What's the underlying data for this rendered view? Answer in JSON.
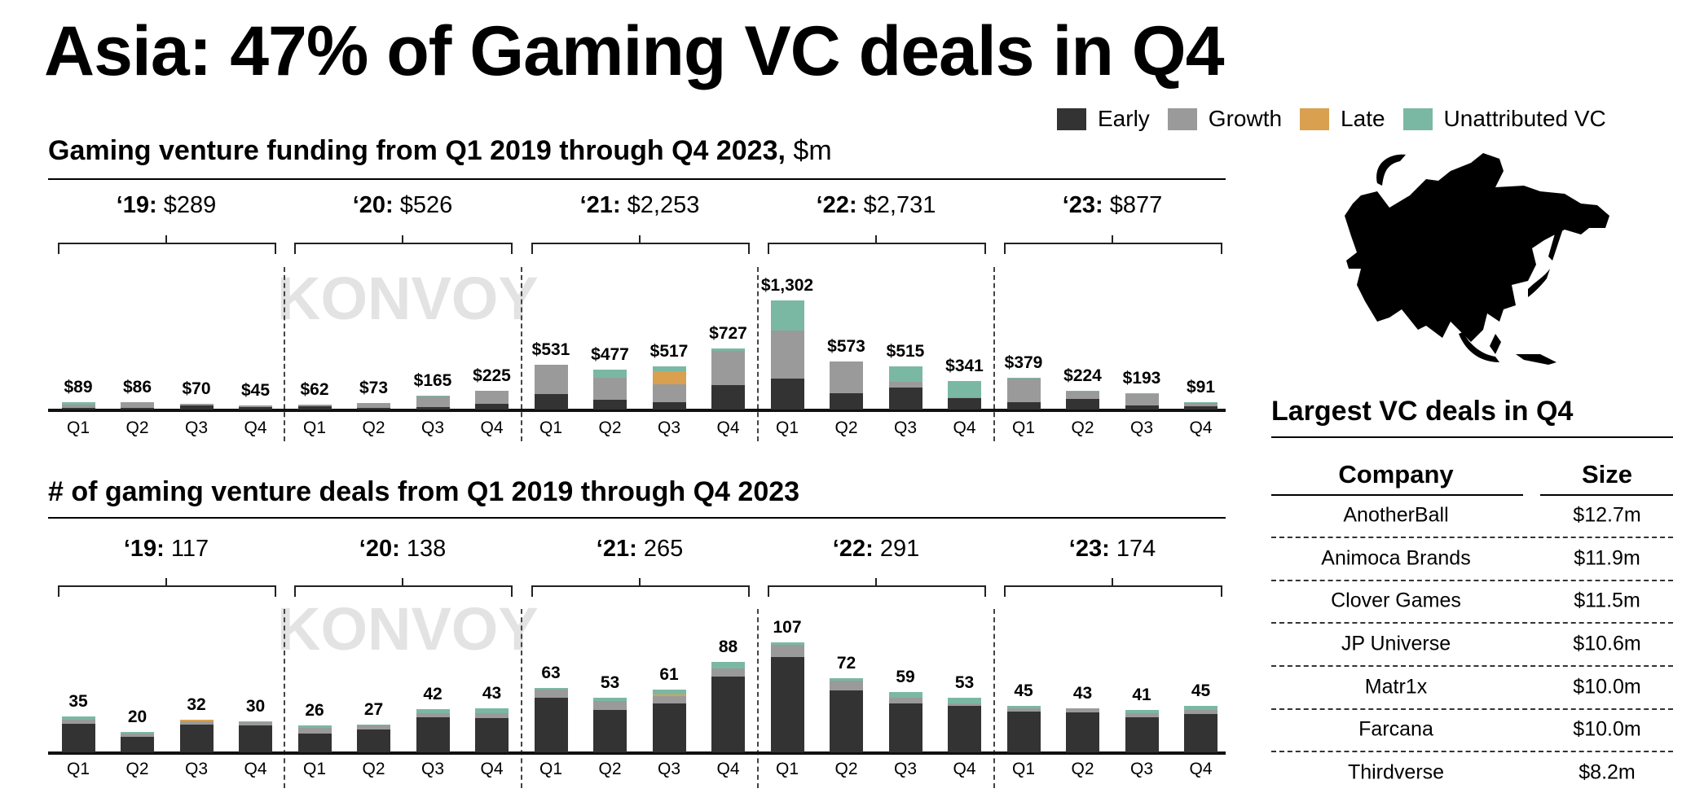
{
  "title": "Asia: 47% of Gaming VC deals in Q4",
  "legend": [
    {
      "label": "Early",
      "color": "#333333"
    },
    {
      "label": "Growth",
      "color": "#9a9a9a"
    },
    {
      "label": "Late",
      "color": "#d9a04f"
    },
    {
      "label": "Unattributed VC",
      "color": "#7ab8a4"
    }
  ],
  "watermark": "KONVOY",
  "chart_data": [
    {
      "type": "bar",
      "stacked": true,
      "title": "Gaming venture funding from Q1 2019 through Q4 2023,",
      "unit": "$m",
      "year_groups": [
        {
          "year": "‘19:",
          "total": "$289"
        },
        {
          "year": "‘20:",
          "total": "$526"
        },
        {
          "year": "‘21:",
          "total": "$2,253"
        },
        {
          "year": "‘22:",
          "total": "$2,731"
        },
        {
          "year": "‘23:",
          "total": "$877"
        }
      ],
      "categories": [
        "Q1",
        "Q2",
        "Q3",
        "Q4",
        "Q1",
        "Q2",
        "Q3",
        "Q4",
        "Q1",
        "Q2",
        "Q3",
        "Q4",
        "Q1",
        "Q2",
        "Q3",
        "Q4",
        "Q1",
        "Q2",
        "Q3",
        "Q4"
      ],
      "total_labels": [
        "$89",
        "$86",
        "$70",
        "$45",
        "$62",
        "$73",
        "$165",
        "$225",
        "$531",
        "$477",
        "$517",
        "$727",
        "$1,302",
        "$573",
        "$515",
        "$341",
        "$379",
        "$224",
        "$193",
        "$91"
      ],
      "totals": [
        89,
        86,
        70,
        45,
        62,
        73,
        165,
        225,
        531,
        477,
        517,
        727,
        1302,
        573,
        515,
        341,
        379,
        224,
        193,
        91
      ],
      "series": [
        {
          "name": "Early",
          "values": [
            15,
            15,
            45,
            25,
            40,
            20,
            30,
            65,
            185,
            120,
            85,
            290,
            370,
            195,
            265,
            140,
            85,
            128,
            50,
            40
          ]
        },
        {
          "name": "Growth",
          "values": [
            44,
            71,
            25,
            20,
            22,
            53,
            125,
            160,
            346,
            262,
            220,
            410,
            570,
            378,
            65,
            10,
            284,
            90,
            130,
            40
          ]
        },
        {
          "name": "Late",
          "values": [
            0,
            0,
            0,
            0,
            0,
            0,
            0,
            0,
            0,
            0,
            150,
            0,
            0,
            0,
            0,
            0,
            0,
            0,
            0,
            0
          ]
        },
        {
          "name": "Unattributed VC",
          "values": [
            30,
            0,
            0,
            0,
            0,
            0,
            10,
            0,
            0,
            95,
            62,
            27,
            362,
            0,
            185,
            191,
            10,
            6,
            13,
            11
          ]
        }
      ],
      "grid": false,
      "legend_position": "top-right"
    },
    {
      "type": "bar",
      "stacked": true,
      "title": "# of gaming venture deals from Q1 2019 through Q4 2023",
      "unit": "",
      "year_groups": [
        {
          "year": "‘19:",
          "total": "117"
        },
        {
          "year": "‘20:",
          "total": "138"
        },
        {
          "year": "‘21:",
          "total": "265"
        },
        {
          "year": "‘22:",
          "total": "291"
        },
        {
          "year": "‘23:",
          "total": "174"
        }
      ],
      "categories": [
        "Q1",
        "Q2",
        "Q3",
        "Q4",
        "Q1",
        "Q2",
        "Q3",
        "Q4",
        "Q1",
        "Q2",
        "Q3",
        "Q4",
        "Q1",
        "Q2",
        "Q3",
        "Q4",
        "Q1",
        "Q2",
        "Q3",
        "Q4"
      ],
      "total_labels": [
        "35",
        "20",
        "32",
        "30",
        "26",
        "27",
        "42",
        "43",
        "63",
        "53",
        "61",
        "88",
        "107",
        "72",
        "59",
        "53",
        "45",
        "43",
        "41",
        "45"
      ],
      "totals": [
        35,
        20,
        32,
        30,
        26,
        27,
        42,
        43,
        63,
        53,
        61,
        88,
        107,
        72,
        59,
        53,
        45,
        43,
        41,
        45
      ],
      "series": [
        {
          "name": "Early",
          "values": [
            28,
            15,
            27,
            26,
            18,
            22,
            34,
            33,
            53,
            41,
            48,
            74,
            93,
            60,
            48,
            45,
            40,
            39,
            34,
            37
          ]
        },
        {
          "name": "Growth",
          "values": [
            4,
            3,
            3,
            3,
            6,
            4,
            4,
            5,
            8,
            9,
            7,
            8,
            12,
            10,
            5,
            3,
            3,
            4,
            4,
            4
          ]
        },
        {
          "name": "Late",
          "values": [
            0,
            0,
            2,
            0,
            0,
            0,
            0,
            0,
            0,
            0,
            1,
            0,
            0,
            0,
            0,
            0,
            0,
            0,
            0,
            0
          ]
        },
        {
          "name": "Unattributed VC",
          "values": [
            3,
            2,
            0,
            1,
            2,
            1,
            4,
            5,
            2,
            3,
            5,
            6,
            2,
            2,
            6,
            5,
            2,
            0,
            3,
            4
          ]
        }
      ],
      "grid": false
    }
  ],
  "table": {
    "title": "Largest VC deals in Q4",
    "headers": {
      "company": "Company",
      "size": "Size"
    },
    "rows": [
      {
        "company": "AnotherBall",
        "size": "$12.7m"
      },
      {
        "company": "Animoca Brands",
        "size": "$11.9m"
      },
      {
        "company": "Clover Games",
        "size": "$11.5m"
      },
      {
        "company": "JP Universe",
        "size": "$10.6m"
      },
      {
        "company": "Matr1x",
        "size": "$10.0m"
      },
      {
        "company": "Farcana",
        "size": "$10.0m"
      },
      {
        "company": "Thirdverse",
        "size": "$8.2m"
      }
    ]
  },
  "map": {
    "icon": "asia-map-icon"
  }
}
